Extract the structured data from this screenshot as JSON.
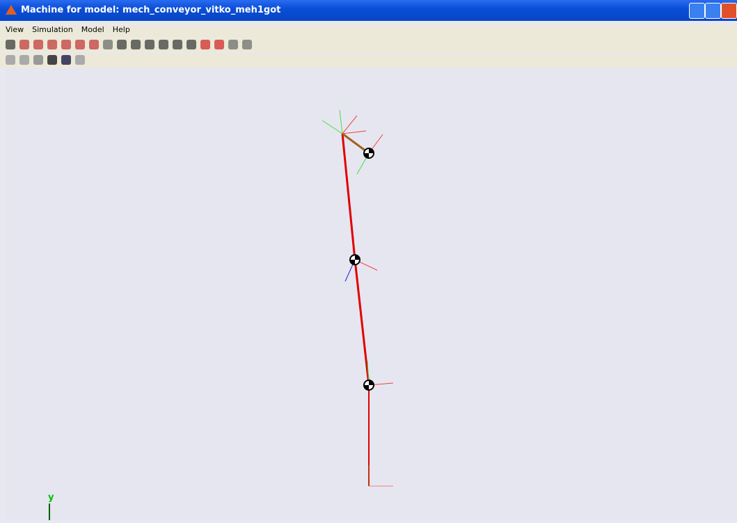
{
  "window": {
    "title": "Machine for model: mech_conveyor_vitko_meh1got"
  },
  "menu": [
    "View",
    "Simulation",
    "Model",
    "Help"
  ],
  "viewport": {
    "axis_label": "y"
  }
}
